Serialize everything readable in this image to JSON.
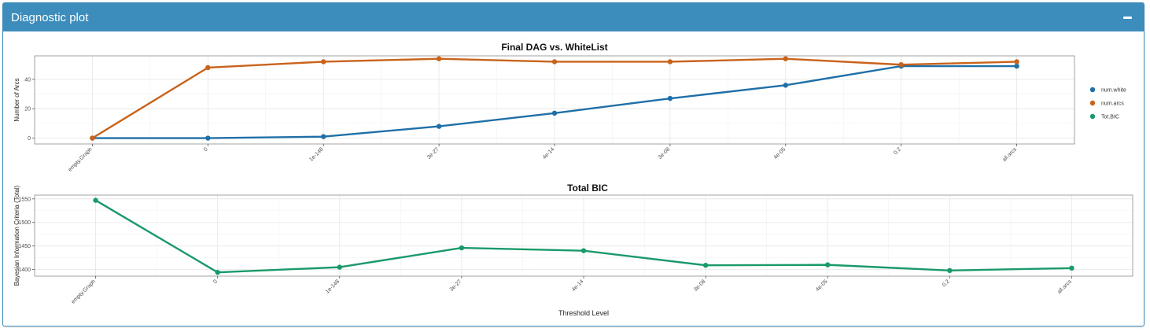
{
  "box": {
    "title": "Diagnostic plot",
    "collapse_icon": "minus-icon"
  },
  "colors": {
    "header": "#3c8dbc",
    "num_white": "#1f6fa8",
    "num_arcs": "#c9621a",
    "tot_bic": "#1a9a6b"
  },
  "chart_data": [
    {
      "type": "line",
      "title": "Final DAG vs. WhiteList",
      "xlabel": "",
      "ylabel": "Number of Arcs",
      "categories": [
        "empty.Graph",
        "0",
        "1e-148",
        "3e-27",
        "4e-14",
        "3e-08",
        "4e-05",
        "0.2",
        "all.arcs"
      ],
      "ylim": [
        -4,
        56
      ],
      "yticks": [
        0,
        20,
        40
      ],
      "grid": true,
      "legend_position": "right",
      "legend": [
        {
          "name": "num.white",
          "color": "#1f6fa8"
        },
        {
          "name": "num.arcs",
          "color": "#c9621a"
        },
        {
          "name": "Tot.BIC",
          "color": "#1a9a6b"
        }
      ],
      "series": [
        {
          "name": "num.white",
          "color": "#1f6fa8",
          "values": [
            0,
            0,
            1,
            8,
            17,
            27,
            36,
            49,
            49
          ]
        },
        {
          "name": "num.arcs",
          "color": "#c9621a",
          "values": [
            0,
            48,
            52,
            54,
            52,
            52,
            54,
            50,
            52
          ]
        }
      ]
    },
    {
      "type": "line",
      "title": "Total BIC",
      "xlabel": "Threshold Level",
      "ylabel": "Bayesian Information Criteria (Total)",
      "categories": [
        "empty.Graph",
        "0",
        "1e-148",
        "3e-27",
        "4e-14",
        "3e-08",
        "4e-05",
        "0.2",
        "all.arcs"
      ],
      "ylim": [
        1386,
        1558
      ],
      "yticks": [
        1400,
        1450,
        1500,
        1550
      ],
      "grid": true,
      "series": [
        {
          "name": "Tot.BIC",
          "color": "#1a9a6b",
          "values": [
            1547,
            1394,
            1405,
            1446,
            1440,
            1409,
            1410,
            1398,
            1403
          ]
        }
      ]
    }
  ]
}
